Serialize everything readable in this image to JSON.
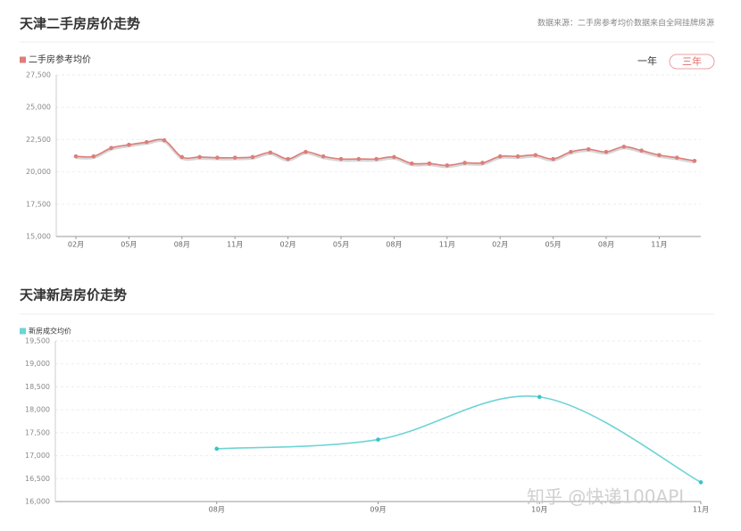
{
  "chart_data": [
    {
      "type": "line",
      "title": "天津二手房房价走势",
      "source": "数据来源：二手房参考均价数据来自全网挂牌房源",
      "buttons": [
        "一年",
        "三年"
      ],
      "categories": [
        "02月",
        null,
        null,
        "05月",
        null,
        null,
        "08月",
        null,
        null,
        "11月",
        null,
        null,
        "02月",
        null,
        null,
        "05月",
        null,
        null,
        "08月",
        null,
        null,
        "11月",
        null,
        null,
        "02月",
        null,
        null,
        "05月",
        null,
        null,
        "08月",
        null,
        null,
        "11月",
        null,
        null
      ],
      "series": [
        {
          "name": "二手房参考均价",
          "color": "#dd7e7a",
          "values": [
            21200,
            21200,
            21850,
            22100,
            22300,
            22450,
            21150,
            21150,
            21100,
            21100,
            21150,
            21500,
            21000,
            21550,
            21200,
            21000,
            21000,
            21000,
            21150,
            20650,
            20650,
            20500,
            20700,
            20700,
            21200,
            21200,
            21300,
            21000,
            21550,
            21750,
            21550,
            21950,
            21650,
            21300,
            21100,
            20850
          ]
        }
      ],
      "ylim": [
        15000,
        27500
      ],
      "yticks": [
        {
          "value": 15000,
          "label": "15,000"
        },
        {
          "value": 17500,
          "label": "17,500"
        },
        {
          "value": 20000,
          "label": "20,000"
        },
        {
          "value": 22500,
          "label": "22,500"
        },
        {
          "value": 25000,
          "label": "25,000"
        },
        {
          "value": 27500,
          "label": "27,500"
        }
      ],
      "grid": true
    },
    {
      "type": "line",
      "title": "天津新房房价走势",
      "categories": [
        "08月",
        "09月",
        "10月",
        "11月"
      ],
      "series": [
        {
          "name": "新房成交均价",
          "color": "#6ed4d6",
          "values": [
            17150,
            17350,
            18280,
            16420
          ]
        }
      ],
      "ylim": [
        16000,
        19500
      ],
      "yticks": [
        {
          "value": 16000,
          "label": "16,000"
        },
        {
          "value": 16500,
          "label": "16,500"
        },
        {
          "value": 17000,
          "label": "17,000"
        },
        {
          "value": 17500,
          "label": "17,500"
        },
        {
          "value": 18000,
          "label": "18,000"
        },
        {
          "value": 18500,
          "label": "18,500"
        },
        {
          "value": 19000,
          "label": "19,000"
        },
        {
          "value": 19500,
          "label": "19,500"
        }
      ],
      "grid": true
    }
  ],
  "watermark": "知乎 @快递100API"
}
